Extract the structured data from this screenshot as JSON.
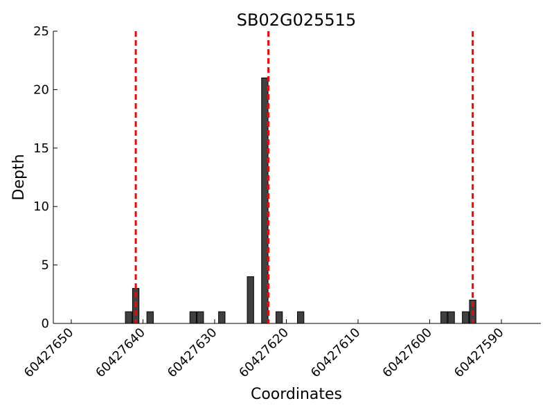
{
  "chart_data": {
    "type": "bar",
    "title": "SB02G025515",
    "xlabel": "Coordinates",
    "ylabel": "Depth",
    "x_reversed": true,
    "xlim": [
      60427652.5,
      60427584.5
    ],
    "ylim": [
      0,
      25
    ],
    "x_ticks": [
      60427650,
      60427640,
      60427630,
      60427620,
      60427610,
      60427600,
      60427590
    ],
    "x_tick_labels": [
      "60427650",
      "60427640",
      "60427630",
      "60427620",
      "60427610",
      "60427600",
      "60427590"
    ],
    "y_ticks": [
      0,
      5,
      10,
      15,
      20,
      25
    ],
    "y_tick_labels": [
      "0",
      "5",
      "10",
      "15",
      "20",
      "25"
    ],
    "bars": [
      {
        "x": 60427642,
        "value": 1
      },
      {
        "x": 60427641,
        "value": 3
      },
      {
        "x": 60427639,
        "value": 1
      },
      {
        "x": 60427633,
        "value": 1
      },
      {
        "x": 60427632,
        "value": 1
      },
      {
        "x": 60427629,
        "value": 1
      },
      {
        "x": 60427625,
        "value": 4
      },
      {
        "x": 60427623,
        "value": 21
      },
      {
        "x": 60427621,
        "value": 1
      },
      {
        "x": 60427618,
        "value": 1
      },
      {
        "x": 60427598,
        "value": 1
      },
      {
        "x": 60427597,
        "value": 1
      },
      {
        "x": 60427595,
        "value": 1
      },
      {
        "x": 60427594,
        "value": 2
      }
    ],
    "reference_lines": [
      60427641,
      60427622.5,
      60427594
    ],
    "colors": {
      "bar_fill": "#404040",
      "bar_edge": "#000000",
      "reference_line": "#ff0000",
      "axis": "#000000"
    },
    "grid": false
  }
}
